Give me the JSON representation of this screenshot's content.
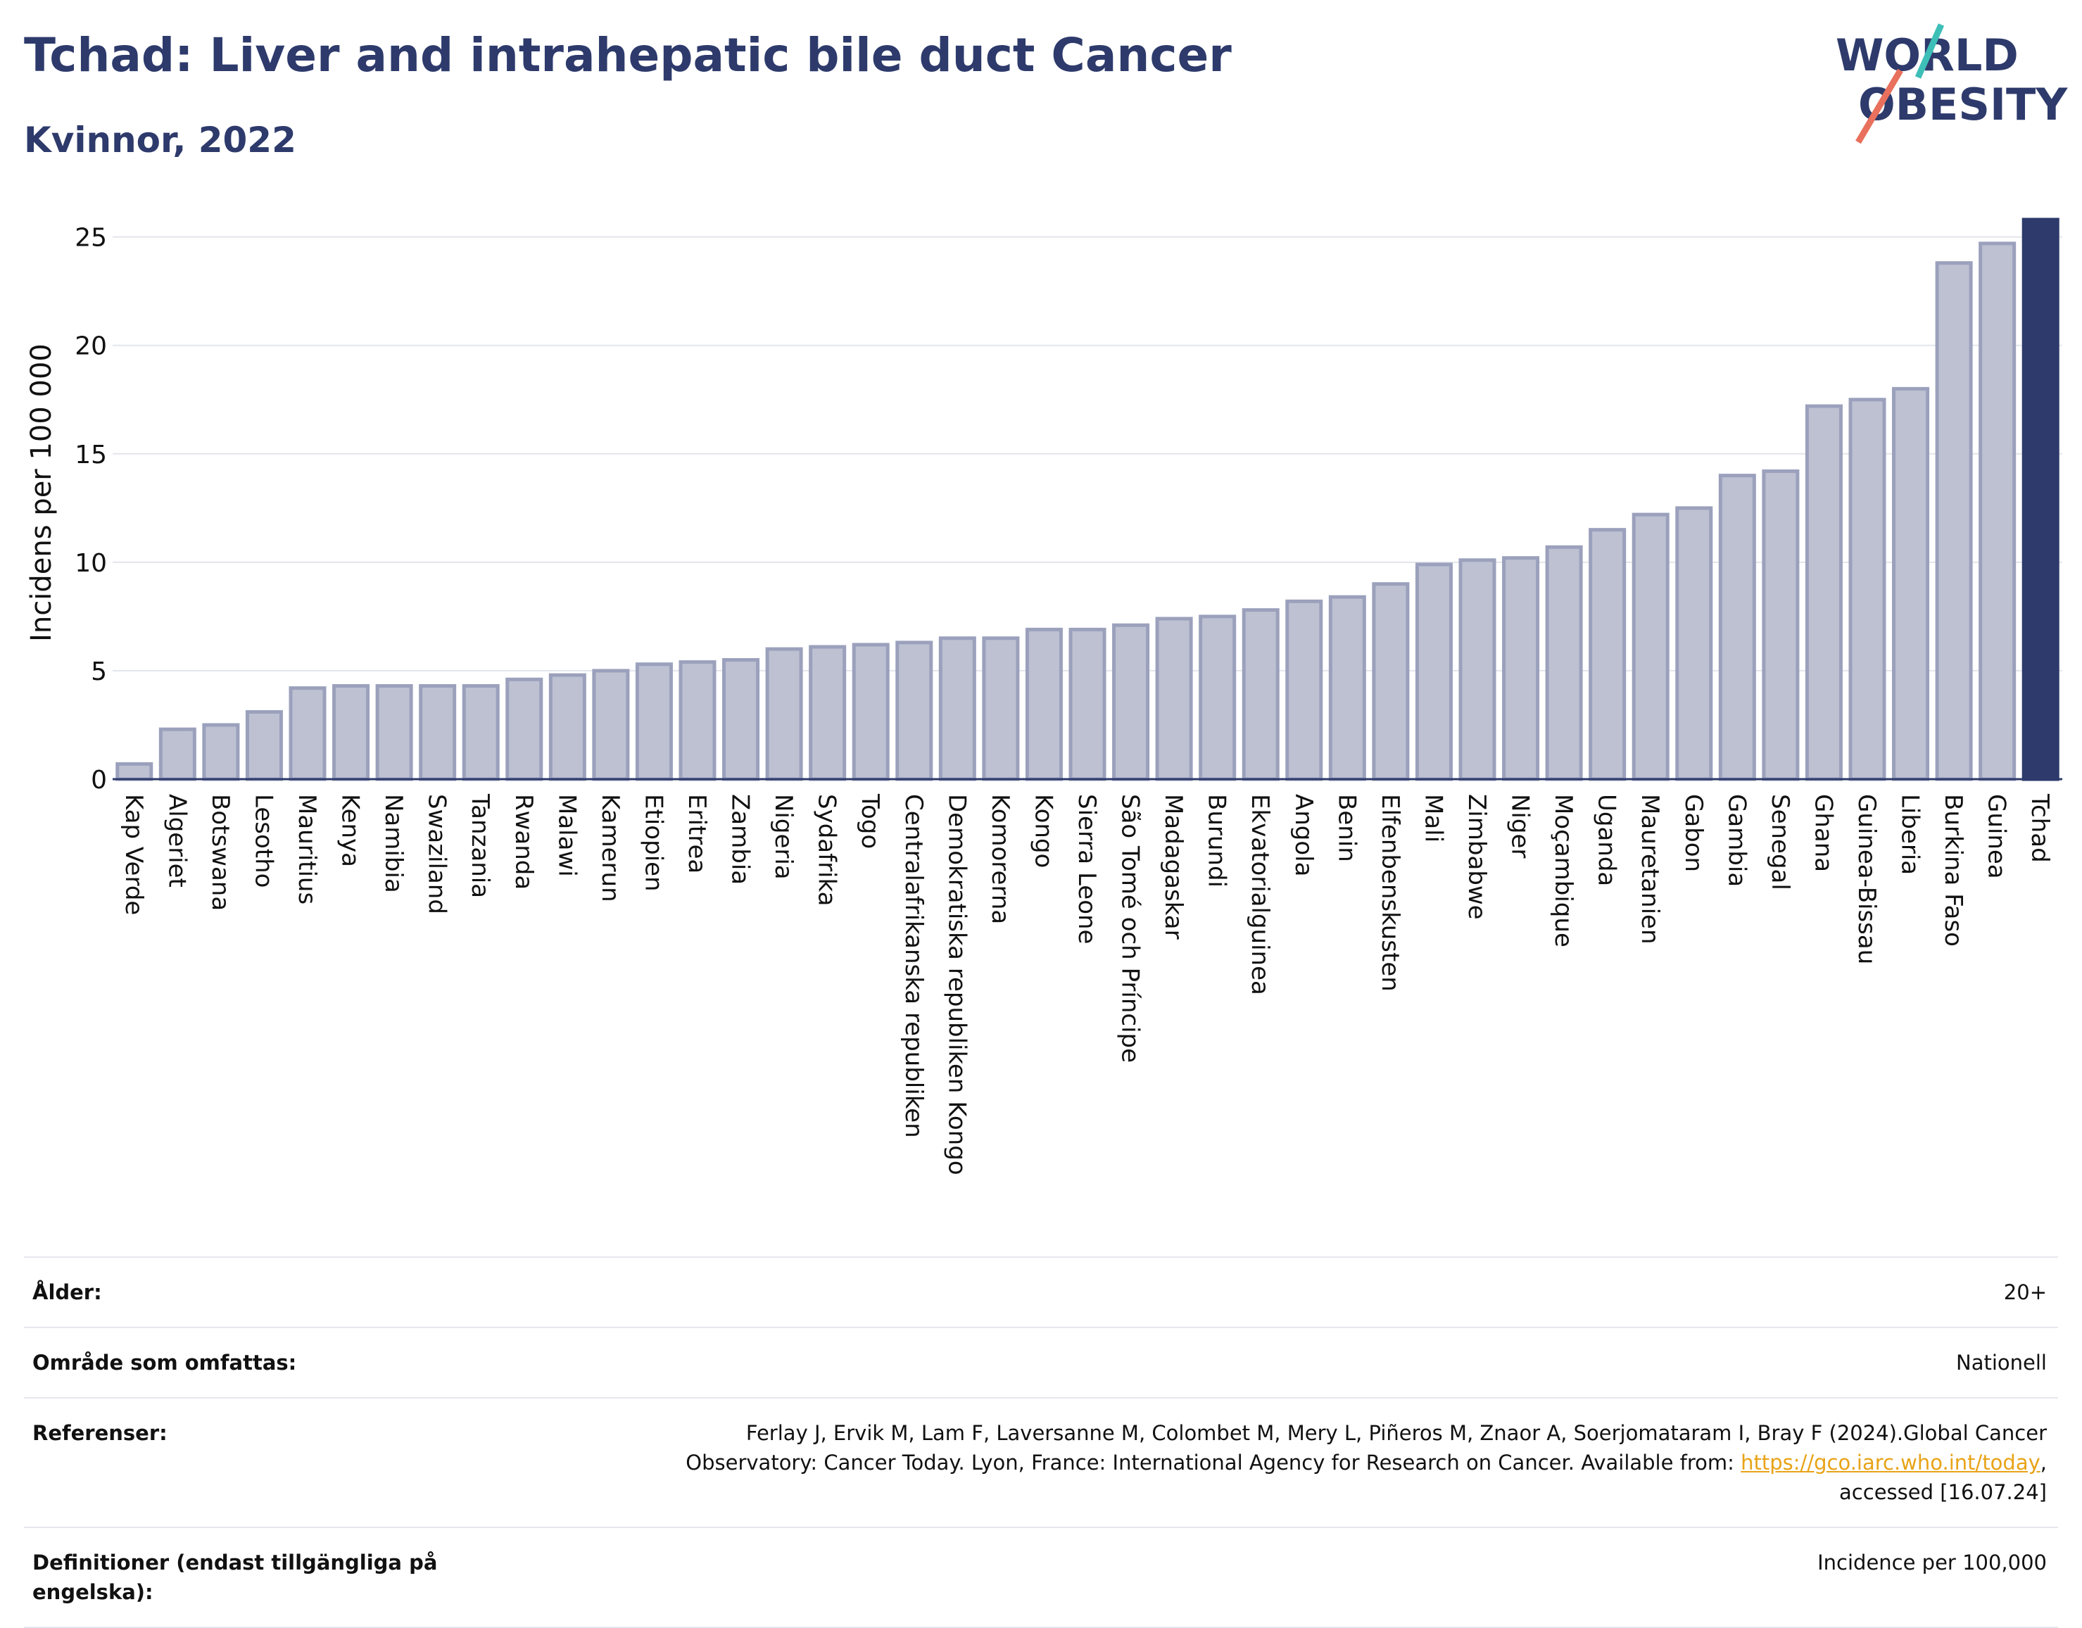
{
  "header": {
    "title": "Tchad: Liver and intrahepatic bile duct Cancer",
    "subtitle": "Kvinnor, 2022",
    "logo_line1": "WORLD",
    "logo_line2": "OBESITY"
  },
  "colors": {
    "bar": "#bdc1d2",
    "bar_border": "#9ba1bc",
    "highlight": "#2d3a6b",
    "text": "#2d3a6b",
    "logo_teal": "#3dbfb8",
    "logo_coral": "#e8705c"
  },
  "chart_data": {
    "type": "bar",
    "ylabel": "Incidens per 100 000",
    "ylim": [
      0,
      25.8
    ],
    "yticks": [
      0,
      5,
      10,
      15,
      20,
      25
    ],
    "grid": true,
    "highlight": "Tchad",
    "categories": [
      "Kap Verde",
      "Algeriet",
      "Botswana",
      "Lesotho",
      "Mauritius",
      "Kenya",
      "Namibia",
      "Swaziland",
      "Tanzania",
      "Rwanda",
      "Malawi",
      "Kamerun",
      "Etiopien",
      "Eritrea",
      "Zambia",
      "Nigeria",
      "Sydafrika",
      "Togo",
      "Centralafrikanska republiken",
      "Demokratiska republiken Kongo",
      "Komorerna",
      "Kongo",
      "Sierra Leone",
      "São Tomé och Príncipe",
      "Madagaskar",
      "Burundi",
      "Ekvatorialguinea",
      "Angola",
      "Benin",
      "Elfenbenskusten",
      "Mali",
      "Zimbabwe",
      "Niger",
      "Moçambique",
      "Uganda",
      "Mauretanien",
      "Gabon",
      "Gambia",
      "Senegal",
      "Ghana",
      "Guinea-Bissau",
      "Liberia",
      "Burkina Faso",
      "Guinea",
      "Tchad"
    ],
    "values": [
      0.7,
      2.3,
      2.5,
      3.1,
      4.2,
      4.3,
      4.3,
      4.3,
      4.3,
      4.6,
      4.8,
      5.0,
      5.3,
      5.4,
      5.5,
      6.0,
      6.1,
      6.2,
      6.3,
      6.5,
      6.5,
      6.9,
      6.9,
      7.1,
      7.4,
      7.5,
      7.8,
      8.2,
      8.4,
      9.0,
      9.9,
      10.1,
      10.2,
      10.7,
      11.5,
      12.2,
      12.5,
      14.0,
      14.2,
      17.2,
      17.5,
      18.0,
      23.8,
      24.7,
      25.8
    ]
  },
  "info": {
    "age_label": "Ålder:",
    "age_value": "20+",
    "area_label": "Område som omfattas:",
    "area_value": "Nationell",
    "ref_label": "Referenser:",
    "ref_text_1": "Ferlay J, Ervik M, Lam F, Laversanne M, Colombet M, Mery L, Piñeros M, Znaor A, Soerjomataram I, Bray F (2024).Global Cancer",
    "ref_text_2": "Observatory: Cancer Today. Lyon, France: International Agency for Research on Cancer. Available from: ",
    "ref_link": "https://gco.iarc.who.int/today",
    "ref_text_3": ",",
    "ref_text_4": "accessed [16.07.24]",
    "def_label": "Definitioner (endast tillgängliga på engelska):",
    "def_value": "Incidence per 100,000"
  }
}
